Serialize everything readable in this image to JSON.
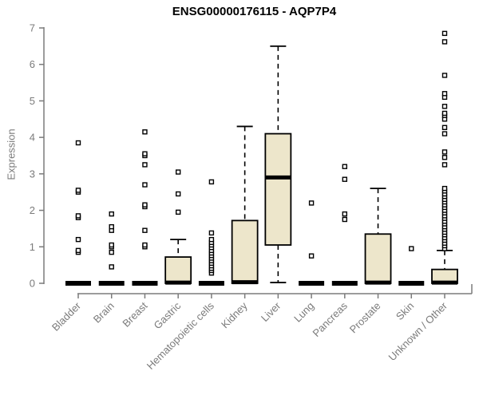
{
  "title": "ENSG00000176115 - AQP7P4",
  "colors": {
    "background": "#FFFFFF",
    "box_fill": "#EDE6CB",
    "box_line": "#000000",
    "axis": "#7B7B7B",
    "axis_text": "#7B7B7B",
    "title_text": "#000000"
  },
  "chart_data": {
    "type": "boxplot",
    "title": "ENSG00000176115 - AQP7P4",
    "xlabel": "",
    "ylabel": "Expression",
    "ylim": [
      0,
      7
    ],
    "yticks": [
      0,
      1,
      2,
      3,
      4,
      5,
      6,
      7
    ],
    "grid": false,
    "legend": "none",
    "categories": [
      "Bladder",
      "Brain",
      "Breast",
      "Gastric",
      "Hematopoietic cells",
      "Kidney",
      "Liver",
      "Lung",
      "Pancreas",
      "Prostate",
      "Skin",
      "Unknown / Other"
    ],
    "series": [
      {
        "name": "Bladder",
        "q1": 0,
        "median": 0,
        "q3": 0,
        "whisker_low": 0,
        "whisker_high": 0,
        "outliers": [
          0.85,
          0.9,
          1.2,
          1.8,
          1.85,
          2.5,
          2.55,
          3.85
        ]
      },
      {
        "name": "Brain",
        "q1": 0,
        "median": 0,
        "q3": 0,
        "whisker_low": 0,
        "whisker_high": 0,
        "outliers": [
          0.45,
          0.85,
          1.0,
          1.05,
          1.45,
          1.55,
          1.9
        ]
      },
      {
        "name": "Breast",
        "q1": 0,
        "median": 0,
        "q3": 0,
        "whisker_low": 0,
        "whisker_high": 0,
        "outliers": [
          1.0,
          1.05,
          1.45,
          2.1,
          2.15,
          2.7,
          3.25,
          3.5,
          3.55,
          4.15
        ]
      },
      {
        "name": "Gastric",
        "q1": 0,
        "median": 0.02,
        "q3": 0.72,
        "whisker_low": 0,
        "whisker_high": 1.2,
        "outliers": [
          1.95,
          2.45,
          3.05
        ]
      },
      {
        "name": "Hematopoietic cells",
        "q1": 0,
        "median": 0,
        "q3": 0,
        "whisker_low": 0,
        "whisker_high": 0,
        "outliers": [
          0.28,
          0.35,
          0.41,
          0.48,
          0.55,
          0.62,
          0.69,
          0.76,
          0.83,
          0.9,
          0.98,
          1.05,
          1.12,
          1.2,
          1.38,
          2.78
        ]
      },
      {
        "name": "Kidney",
        "q1": 0,
        "median": 0.03,
        "q3": 1.72,
        "whisker_low": 0,
        "whisker_high": 4.3,
        "outliers": []
      },
      {
        "name": "Liver",
        "q1": 1.05,
        "median": 2.9,
        "q3": 4.1,
        "whisker_low": 0.02,
        "whisker_high": 6.5,
        "outliers": []
      },
      {
        "name": "Lung",
        "q1": 0,
        "median": 0,
        "q3": 0,
        "whisker_low": 0,
        "whisker_high": 0,
        "outliers": [
          0.75,
          2.2
        ]
      },
      {
        "name": "Pancreas",
        "q1": 0,
        "median": 0,
        "q3": 0,
        "whisker_low": 0,
        "whisker_high": 0,
        "outliers": [
          1.75,
          1.9,
          2.85,
          3.2
        ]
      },
      {
        "name": "Prostate",
        "q1": 0,
        "median": 0.02,
        "q3": 1.35,
        "whisker_low": 0,
        "whisker_high": 2.6,
        "outliers": []
      },
      {
        "name": "Skin",
        "q1": 0,
        "median": 0,
        "q3": 0,
        "whisker_low": 0,
        "whisker_high": 0,
        "outliers": [
          0.95
        ]
      },
      {
        "name": "Unknown / Other",
        "q1": 0,
        "median": 0.02,
        "q3": 0.38,
        "whisker_low": 0,
        "whisker_high": 0.9,
        "outliers": [
          0.95,
          1.03,
          1.1,
          1.18,
          1.25,
          1.33,
          1.4,
          1.48,
          1.55,
          1.63,
          1.7,
          1.78,
          1.85,
          1.93,
          2.0,
          2.08,
          2.15,
          2.23,
          2.3,
          2.38,
          2.45,
          2.53,
          2.6,
          3.25,
          3.45,
          3.6,
          4.1,
          4.27,
          4.5,
          4.6,
          4.66,
          4.85,
          5.1,
          5.2,
          5.7,
          6.62,
          6.85
        ]
      }
    ]
  }
}
